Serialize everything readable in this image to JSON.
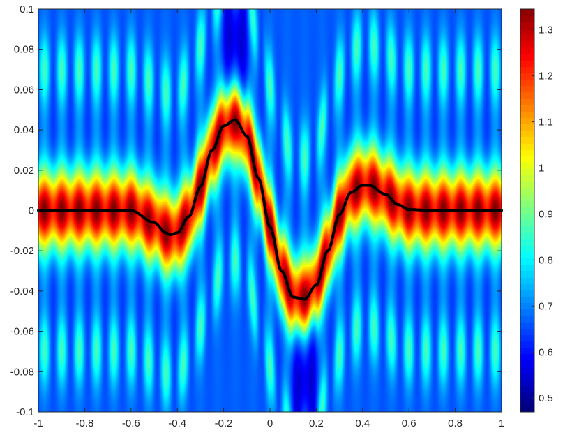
{
  "chart_data": {
    "type": "heatmap",
    "title": "",
    "xlabel": "",
    "ylabel": "",
    "xlim": [
      -1,
      1
    ],
    "ylim": [
      -0.1,
      0.1
    ],
    "x_ticks": [
      -1,
      -0.8,
      -0.6,
      -0.4,
      -0.2,
      0,
      0.2,
      0.4,
      0.6,
      0.8,
      1
    ],
    "x_tick_labels": [
      "-1",
      "-0.8",
      "-0.6",
      "-0.4",
      "-0.2",
      "0",
      "0.2",
      "0.4",
      "0.6",
      "0.8",
      "1"
    ],
    "y_ticks": [
      -0.1,
      -0.08,
      -0.06,
      -0.04,
      -0.02,
      0,
      0.02,
      0.04,
      0.06,
      0.08,
      0.1
    ],
    "y_tick_labels": [
      "-0.1",
      "-0.08",
      "-0.06",
      "-0.04",
      "-0.02",
      "0",
      "0.02",
      "0.04",
      "0.06",
      "0.08",
      "0.1"
    ],
    "colormap": "jet",
    "colorbar": {
      "range": [
        0.47,
        1.345
      ],
      "ticks": [
        0.5,
        0.6,
        0.7,
        0.8,
        0.9,
        1,
        1.1,
        1.2,
        1.3
      ],
      "tick_labels": [
        "0.5",
        "0.6",
        "0.7",
        "0.8",
        "0.9",
        "1",
        "1.1",
        "1.2",
        "1.3"
      ]
    },
    "curve": {
      "color": "#000000",
      "x": [
        -1,
        -0.8,
        -0.6,
        -0.5,
        -0.45,
        -0.43,
        -0.4,
        -0.35,
        -0.3,
        -0.25,
        -0.2,
        -0.15,
        -0.1,
        -0.05,
        0,
        0.05,
        0.1,
        0.15,
        0.2,
        0.25,
        0.3,
        0.35,
        0.4,
        0.43,
        0.5,
        0.55,
        0.6,
        0.7,
        0.8,
        1
      ],
      "y": [
        0,
        0,
        0,
        -0.006,
        -0.011,
        -0.012,
        -0.011,
        -0.003,
        0.012,
        0.03,
        0.042,
        0.045,
        0.037,
        0.016,
        -0.008,
        -0.03,
        -0.043,
        -0.044,
        -0.037,
        -0.02,
        -0.002,
        0.009,
        0.0125,
        0.0125,
        0.008,
        0.003,
        0.0005,
        0,
        0,
        0
      ]
    }
  }
}
